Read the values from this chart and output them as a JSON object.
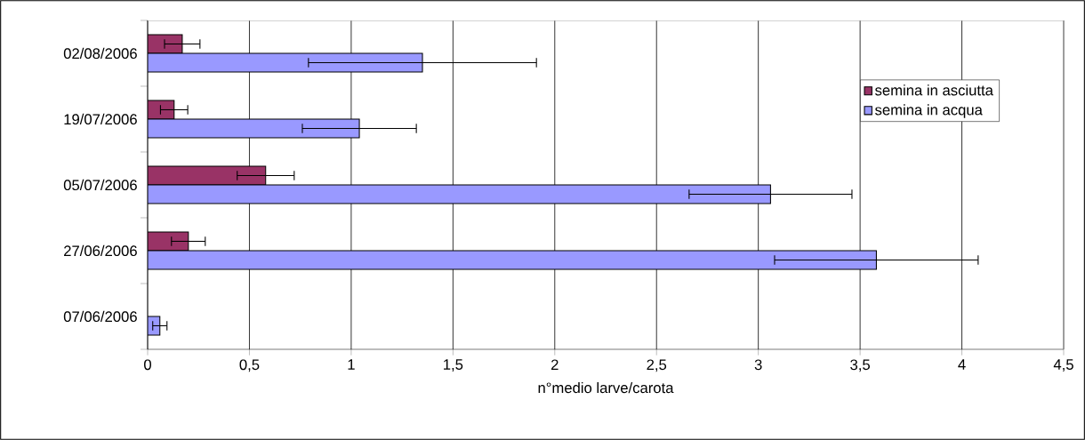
{
  "chart_data": {
    "type": "bar",
    "orientation": "horizontal",
    "xlabel": "n°medio larve/carota",
    "categories": [
      "02/08/2006",
      "19/07/2006",
      "05/07/2006",
      "27/06/2006",
      "07/06/2006"
    ],
    "series": [
      {
        "name": "semina in asciutta",
        "color": "#993366",
        "values": [
          0.17,
          0.13,
          0.58,
          0.2,
          null
        ],
        "errors": [
          0.087,
          0.067,
          0.14,
          0.083,
          null
        ]
      },
      {
        "name": "semina in acqua",
        "color": "#9999ff",
        "values": [
          1.35,
          1.04,
          3.06,
          3.58,
          0.06
        ],
        "errors": [
          0.56,
          0.28,
          0.4,
          0.5,
          0.035
        ]
      }
    ],
    "xlim": [
      0,
      4.5
    ],
    "xticks": [
      0,
      {
        "value": 0.5,
        "label": "0,5"
      },
      1,
      {
        "value": 1.5,
        "label": "1,5"
      },
      2,
      {
        "value": 2.5,
        "label": "2,5"
      },
      3,
      {
        "value": 3.5,
        "label": "3,5"
      },
      4,
      {
        "value": 4.5,
        "label": "4,5"
      }
    ],
    "grid": "x",
    "legend": "top right"
  }
}
